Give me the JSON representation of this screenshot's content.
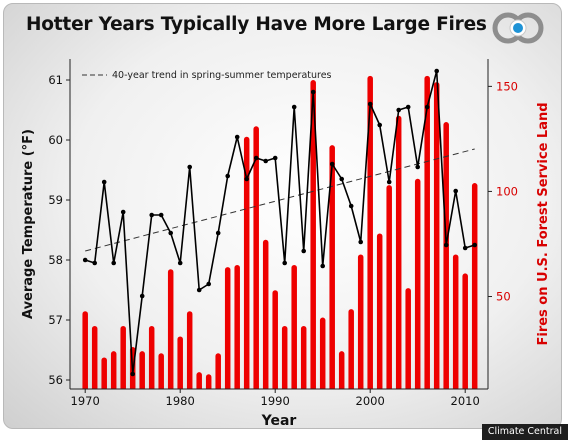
{
  "title": "Hotter Years Typically Have More Large Fires",
  "credit": "Climate Central",
  "logo_icon": "climate-central-logo-icon",
  "colors": {
    "bars": "#ee0000",
    "temp_line": "#000000",
    "trend_line": "#333333",
    "right_axis": "#d80000"
  },
  "chart_data": {
    "type": "bar+line",
    "xlabel": "Year",
    "ylabel_left": "Average Temperature (°F)",
    "ylabel_right": "Fires on U.S. Forest Service Land",
    "legend": "40-year trend in spring-summer temperatures",
    "legend_position": "top-left",
    "grid": false,
    "x": [
      1970,
      1971,
      1972,
      1973,
      1974,
      1975,
      1976,
      1977,
      1978,
      1979,
      1980,
      1981,
      1982,
      1983,
      1984,
      1985,
      1986,
      1987,
      1988,
      1989,
      1990,
      1991,
      1992,
      1993,
      1994,
      1995,
      1996,
      1997,
      1998,
      1999,
      2000,
      2001,
      2002,
      2003,
      2004,
      2005,
      2006,
      2007,
      2008,
      2009,
      2010,
      2011
    ],
    "xticks": [
      1970,
      1980,
      1990,
      2000,
      2010
    ],
    "xlim": [
      1968.4,
      2012.4
    ],
    "ylim_left": [
      55.85,
      61.35
    ],
    "yticks_left": [
      56,
      57,
      58,
      59,
      60,
      61
    ],
    "ylim_right": [
      6,
      163
    ],
    "yticks_right": [
      50,
      100,
      150
    ],
    "series": [
      {
        "name": "Fires on U.S. Forest Service Land",
        "axis": "right",
        "kind": "bar",
        "values": [
          43,
          36,
          21,
          24,
          36,
          26,
          24,
          36,
          23,
          63,
          31,
          43,
          14,
          13,
          23,
          64,
          65,
          126,
          131,
          77,
          53,
          36,
          65,
          36,
          153,
          40,
          122,
          24,
          44,
          70,
          155,
          80,
          103,
          136,
          54,
          106,
          155,
          152,
          133,
          70,
          61,
          104
        ]
      },
      {
        "name": "Average Temperature",
        "axis": "left",
        "kind": "line",
        "values": [
          58.0,
          57.95,
          59.3,
          57.95,
          58.8,
          56.1,
          57.4,
          58.75,
          58.75,
          58.45,
          57.95,
          59.55,
          57.5,
          57.6,
          58.45,
          59.4,
          60.05,
          59.35,
          59.7,
          59.65,
          59.7,
          57.95,
          60.55,
          58.15,
          60.8,
          57.9,
          59.6,
          59.35,
          58.9,
          58.3,
          60.6,
          60.25,
          59.3,
          60.5,
          60.55,
          59.55,
          60.55,
          61.15,
          58.25,
          59.15,
          58.2,
          58.25
        ]
      },
      {
        "name": "40-year trend in spring-summer temperatures",
        "axis": "left",
        "kind": "trend",
        "x": [
          1970,
          2011
        ],
        "values": [
          58.15,
          59.85
        ]
      }
    ]
  }
}
